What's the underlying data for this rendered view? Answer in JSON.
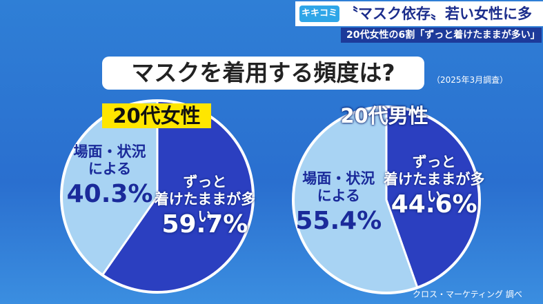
{
  "header": {
    "badge": "キキコミ",
    "headline": "〝マスク依存〟若い女性に多い？",
    "subhead": "20代女性の6割「ずっと着けたままが多い」"
  },
  "question": "マスクを着用する頻度は?",
  "date_note": "（2025年3月調査）",
  "source": "クロス・マーケティング 調べ",
  "chart_data": [
    {
      "type": "pie",
      "title": "20代女性",
      "title_background": "#ffe600",
      "categories": [
        "ずっと\n着けたままが多い",
        "場面・状況\nによる"
      ],
      "values": [
        59.7,
        40.3
      ],
      "value_labels": [
        "59.7%",
        "40.3%"
      ],
      "colors": [
        "#2b3fc0",
        "#a8d3f3"
      ]
    },
    {
      "type": "pie",
      "title": "20代男性",
      "categories": [
        "ずっと\n着けたままが多い",
        "場面・状況\nによる"
      ],
      "values": [
        44.6,
        55.4
      ],
      "value_labels": [
        "44.6%",
        "55.4%"
      ],
      "colors": [
        "#2b3fc0",
        "#a8d3f3"
      ]
    }
  ]
}
